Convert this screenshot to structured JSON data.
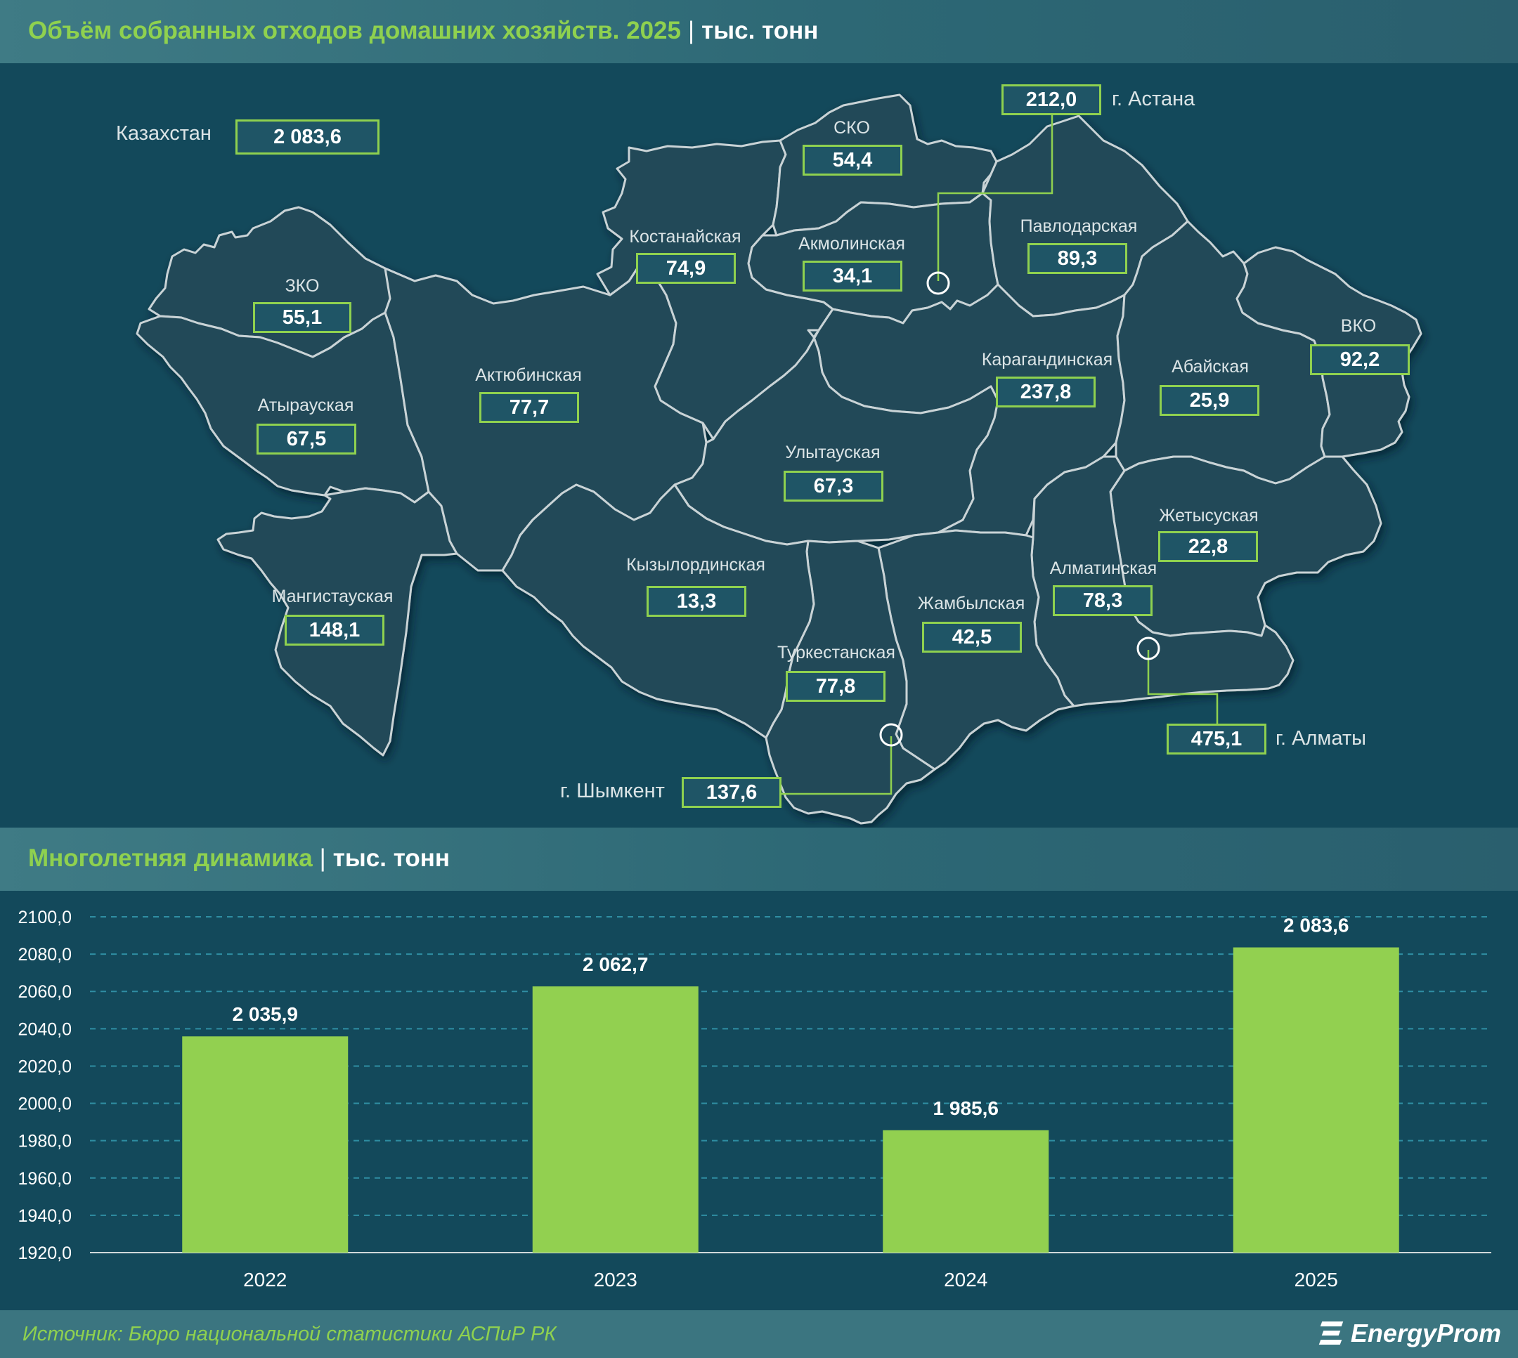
{
  "map_header": {
    "title": "Объём собранных отходов домашних хозяйств. 2025",
    "unit": "тыс. тонн"
  },
  "chart_header": {
    "title": "Многолетняя динамика",
    "unit": "тыс. тонн"
  },
  "kazakhstan": {
    "name": "Казахстан",
    "value": "2 083,6"
  },
  "regions": {
    "sko": {
      "name": "СКО",
      "value": "54,4"
    },
    "kostanay": {
      "name": "Костанайская",
      "value": "74,9"
    },
    "akmola": {
      "name": "Акмолинская",
      "value": "34,1"
    },
    "pavlodar": {
      "name": "Павлодарская",
      "value": "89,3"
    },
    "zko": {
      "name": "ЗКО",
      "value": "55,1"
    },
    "aktobe": {
      "name": "Актюбинская",
      "value": "77,7"
    },
    "atyrau": {
      "name": "Атырауская",
      "value": "67,5"
    },
    "karaganda": {
      "name": "Карагандинская",
      "value": "237,8"
    },
    "abai": {
      "name": "Абайская",
      "value": "25,9"
    },
    "vko": {
      "name": "ВКО",
      "value": "92,2"
    },
    "ulytau": {
      "name": "Улытауская",
      "value": "67,3"
    },
    "zhetysu": {
      "name": "Жетысуская",
      "value": "22,8"
    },
    "mangystau": {
      "name": "Мангистауская",
      "value": "148,1"
    },
    "kyzylorda": {
      "name": "Кызылординская",
      "value": "13,3"
    },
    "almaty_reg": {
      "name": "Алматинская",
      "value": "78,3"
    },
    "zhambyl": {
      "name": "Жамбылская",
      "value": "42,5"
    },
    "turkestan": {
      "name": "Туркестанская",
      "value": "77,8"
    }
  },
  "cities": {
    "astana": {
      "name": "г. Астана",
      "value": "212,0"
    },
    "almaty": {
      "name": "г. Алматы",
      "value": "475,1"
    },
    "shymkent": {
      "name": "г. Шымкент",
      "value": "137,6"
    }
  },
  "chart_data": {
    "type": "bar",
    "categories": [
      "2022",
      "2023",
      "2024",
      "2025"
    ],
    "values": [
      2035.9,
      2062.7,
      1985.6,
      2083.6
    ],
    "value_labels": [
      "2 035,9",
      "2 062,7",
      "1 985,6",
      "2 083,6"
    ],
    "ylim": [
      1920,
      2100
    ],
    "yticks": [
      "1920,0",
      "1940,0",
      "1960,0",
      "1980,0",
      "2000,0",
      "2020,0",
      "2040,0",
      "2060,0",
      "2080,0",
      "2100,0"
    ],
    "grid": true,
    "colors": {
      "bar": "#92d050",
      "grid": "#2f8ea3",
      "text": "#ffffff"
    }
  },
  "footer": {
    "source": "Источник: Бюро национальной статистики АСПиР РК",
    "logo": "EnergyProm"
  }
}
